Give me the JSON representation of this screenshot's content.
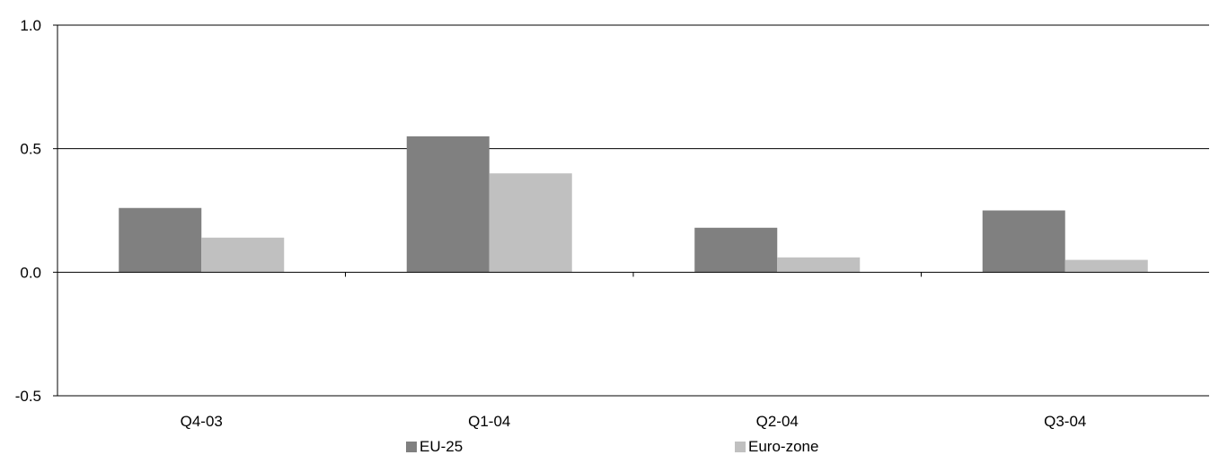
{
  "chart_data": {
    "type": "bar",
    "categories": [
      "Q4-03",
      "Q1-04",
      "Q2-04",
      "Q3-04"
    ],
    "series": [
      {
        "name": "EU-25",
        "values": [
          0.26,
          0.55,
          0.18,
          0.25
        ],
        "color": "#808080"
      },
      {
        "name": "Euro-zone",
        "values": [
          0.14,
          0.4,
          0.06,
          0.05
        ],
        "color": "#c0c0c0"
      }
    ],
    "ylim": [
      -0.5,
      1.0
    ],
    "yticks": [
      1.0,
      0.5,
      0.0,
      -0.5
    ],
    "ytick_labels": [
      "1.0",
      "0.5",
      "0.0",
      "-0.5"
    ],
    "grid": true,
    "legend_position": "bottom"
  }
}
